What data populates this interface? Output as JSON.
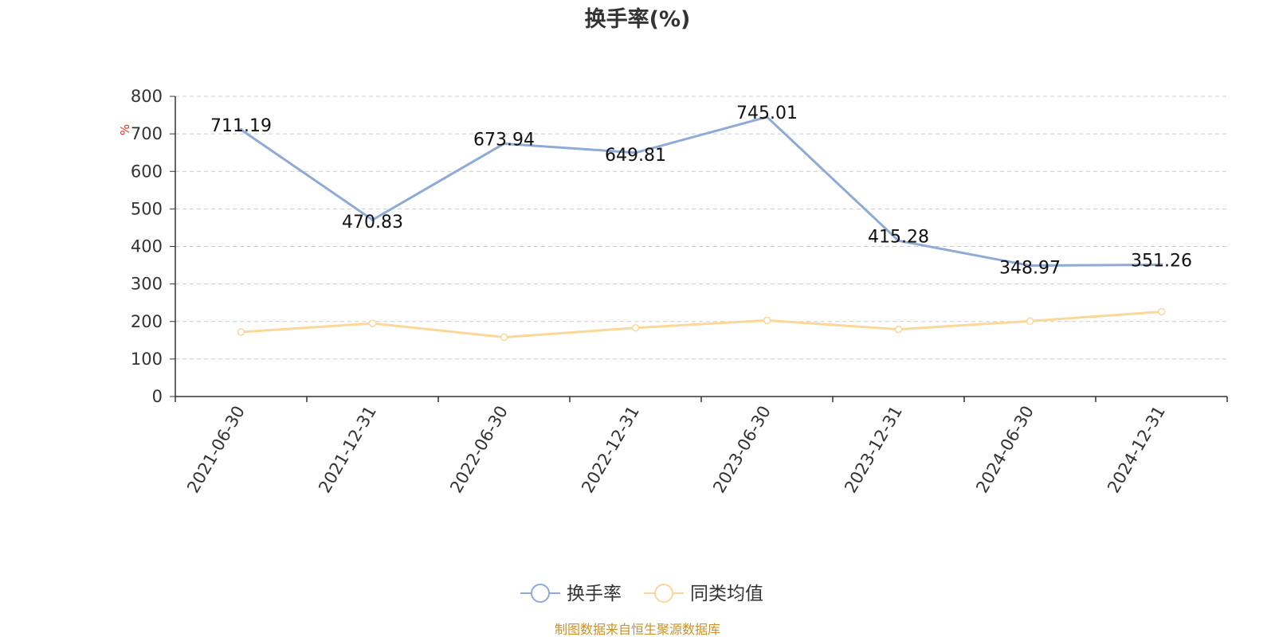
{
  "colors": {
    "primary": "#8eaad6",
    "secondary": "#fbd899",
    "grid": "#cccccc",
    "axis": "#333333",
    "unit": "#e0301e",
    "source": "#c8932a"
  },
  "chart_data": {
    "type": "line",
    "title": "换手率(%)",
    "ylabel": "%",
    "xlabel": "",
    "ylim": [
      0,
      800
    ],
    "yticks": [
      0,
      100,
      200,
      300,
      400,
      500,
      600,
      700,
      800
    ],
    "grid": true,
    "legend_position": "bottom-center",
    "categories": [
      "2021-06-30",
      "2021-12-31",
      "2022-06-30",
      "2022-12-31",
      "2023-06-30",
      "2023-12-31",
      "2024-06-30",
      "2024-12-31"
    ],
    "series": [
      {
        "name": "换手率",
        "color": "#8eaad6",
        "values": [
          711.19,
          470.83,
          673.94,
          649.81,
          745.01,
          415.28,
          348.97,
          351.26
        ],
        "labels": [
          "711.19",
          "470.83",
          "673.94",
          "649.81",
          "745.01",
          "415.28",
          "348.97",
          "351.26"
        ]
      },
      {
        "name": "同类均值",
        "color": "#fbd899",
        "values": [
          172,
          195,
          158,
          183,
          203,
          179,
          201,
          226
        ]
      }
    ]
  },
  "source_note": "制图数据来自恒生聚源数据库"
}
